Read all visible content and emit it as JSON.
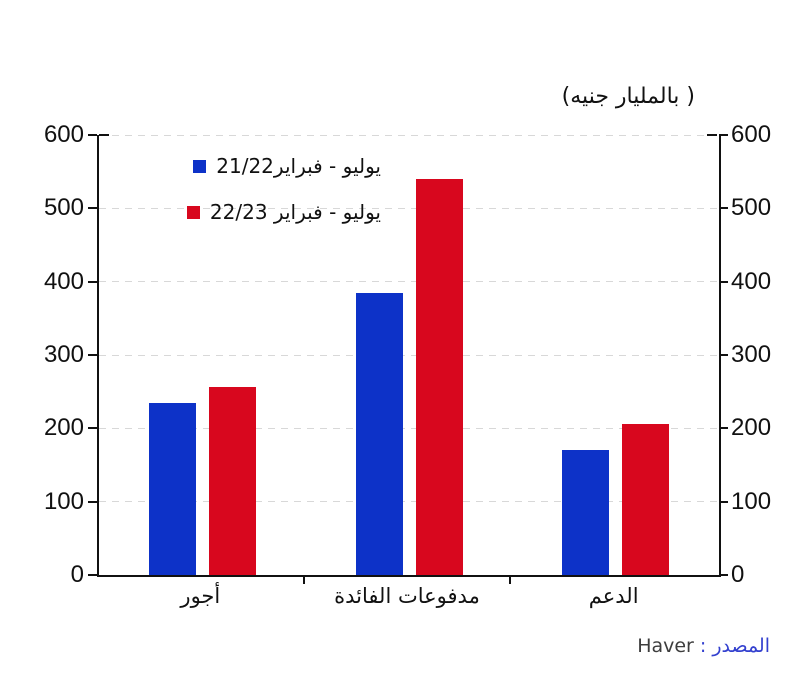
{
  "chart_data": {
    "type": "bar",
    "title": "( بالمليار جنيه)",
    "categories": [
      "أجور",
      "مدفوعات الفائدة",
      "الدعم"
    ],
    "series": [
      {
        "name": "يوليو - فبراير21/22",
        "color": "#0d32c8",
        "values": [
          235,
          385,
          170
        ]
      },
      {
        "name": "يوليو - فبراير 22/23",
        "color": "#d8071e",
        "values": [
          257,
          540,
          206
        ]
      }
    ],
    "ylim": [
      0,
      600
    ],
    "yticks": [
      0,
      100,
      200,
      300,
      400,
      500,
      600
    ],
    "grid": true,
    "dual_axis": true,
    "legend_position": "upper-left-inside"
  },
  "source": {
    "label": "المصدر :",
    "value": "Haver"
  },
  "colors": {
    "axis": "#111111",
    "gridline": "#d8d8d8"
  }
}
